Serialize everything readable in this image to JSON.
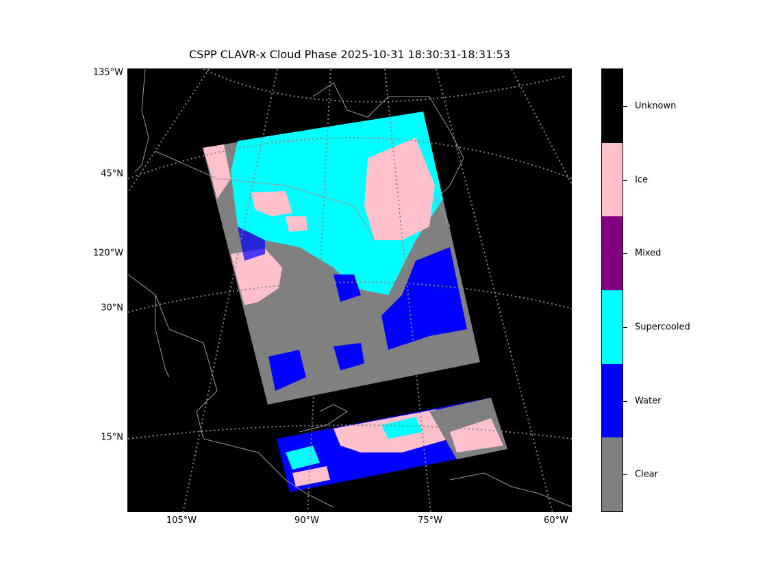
{
  "title": "CSPP CLAVR-x Cloud Phase 2025-10-31 18:30:31-18:31:53",
  "y_labels": [
    "135°W",
    "45°N",
    "120°W",
    "30°N",
    "15°N"
  ],
  "x_labels": [
    "105°W",
    "90°W",
    "75°W",
    "60°W"
  ],
  "colorbar": [
    {
      "label": "Unknown",
      "color": "#000000"
    },
    {
      "label": "Ice",
      "color": "#ffc0cb"
    },
    {
      "label": "Mixed",
      "color": "#800080"
    },
    {
      "label": "Supercooled",
      "color": "#00ffff"
    },
    {
      "label": "Water",
      "color": "#0000ff"
    },
    {
      "label": "Clear",
      "color": "#808080"
    }
  ]
}
